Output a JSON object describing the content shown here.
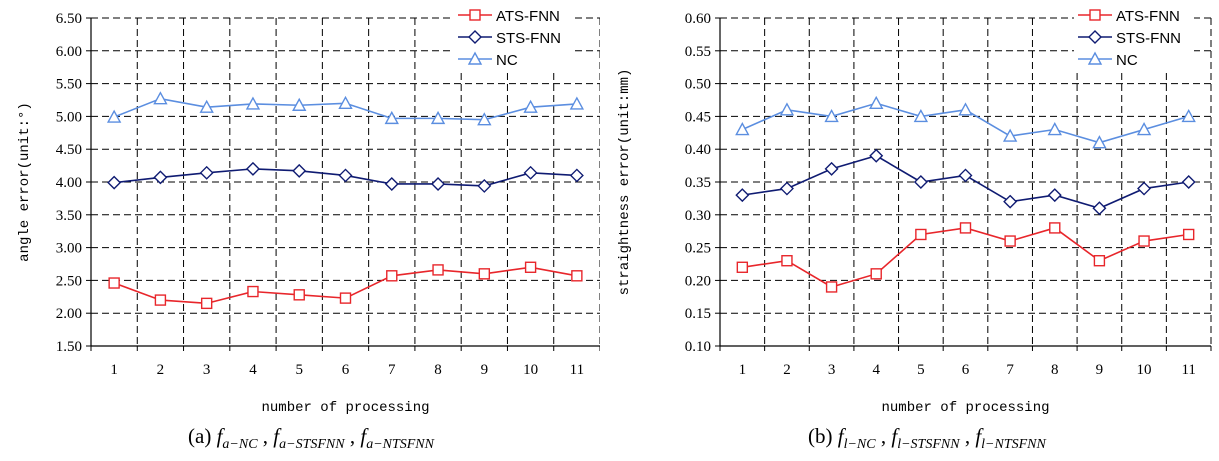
{
  "chart_data": [
    {
      "type": "line",
      "ylabel": "angle error(unit:°)",
      "xlabel": "number of processing",
      "x": [
        1,
        2,
        3,
        4,
        5,
        6,
        7,
        8,
        9,
        10,
        11
      ],
      "ylim": [
        1.5,
        6.5
      ],
      "yticks": [
        1.5,
        2.0,
        2.5,
        3.0,
        3.5,
        4.0,
        4.5,
        5.0,
        5.5,
        6.0,
        6.5
      ],
      "yformat": 2,
      "grid": true,
      "legend": "top-right",
      "series": [
        {
          "name": "ATS-FNN",
          "color": "#e8262b",
          "marker": "square",
          "values": [
            2.46,
            2.2,
            2.15,
            2.33,
            2.28,
            2.23,
            2.57,
            2.66,
            2.6,
            2.7,
            2.57
          ]
        },
        {
          "name": "STS-FNN",
          "color": "#0f1b72",
          "marker": "diamond",
          "values": [
            3.99,
            4.07,
            4.14,
            4.2,
            4.17,
            4.1,
            3.97,
            3.97,
            3.94,
            4.14,
            4.1
          ]
        },
        {
          "name": "NC",
          "color": "#5b8ee0",
          "marker": "triangle",
          "values": [
            4.99,
            5.27,
            5.14,
            5.19,
            5.17,
            5.2,
            4.97,
            4.97,
            4.95,
            5.14,
            5.19
          ]
        }
      ],
      "caption": {
        "prefix": "(a) ",
        "items": [
          "a−NC",
          "a−STSFNN",
          "a−NTSFNN"
        ]
      }
    },
    {
      "type": "line",
      "ylabel": "straightness error(unit:mm)",
      "xlabel": "number of processing",
      "x": [
        1,
        2,
        3,
        4,
        5,
        6,
        7,
        8,
        9,
        10,
        11
      ],
      "ylim": [
        0.1,
        0.6
      ],
      "yticks": [
        0.1,
        0.15,
        0.2,
        0.25,
        0.3,
        0.35,
        0.4,
        0.45,
        0.5,
        0.55,
        0.6
      ],
      "yformat": 2,
      "grid": true,
      "legend": "top-right",
      "series": [
        {
          "name": "ATS-FNN",
          "color": "#e8262b",
          "marker": "square",
          "values": [
            0.22,
            0.23,
            0.19,
            0.21,
            0.27,
            0.28,
            0.26,
            0.28,
            0.23,
            0.26,
            0.27
          ]
        },
        {
          "name": "STS-FNN",
          "color": "#0f1b72",
          "marker": "diamond",
          "values": [
            0.33,
            0.34,
            0.37,
            0.39,
            0.35,
            0.36,
            0.32,
            0.33,
            0.31,
            0.34,
            0.35
          ]
        },
        {
          "name": "NC",
          "color": "#5b8ee0",
          "marker": "triangle",
          "values": [
            0.43,
            0.46,
            0.45,
            0.47,
            0.45,
            0.46,
            0.42,
            0.43,
            0.41,
            0.43,
            0.45
          ]
        }
      ],
      "caption": {
        "prefix": "(b) ",
        "items": [
          "l−NC",
          "l−STSFNN",
          "l−NTSFNN"
        ]
      }
    }
  ]
}
